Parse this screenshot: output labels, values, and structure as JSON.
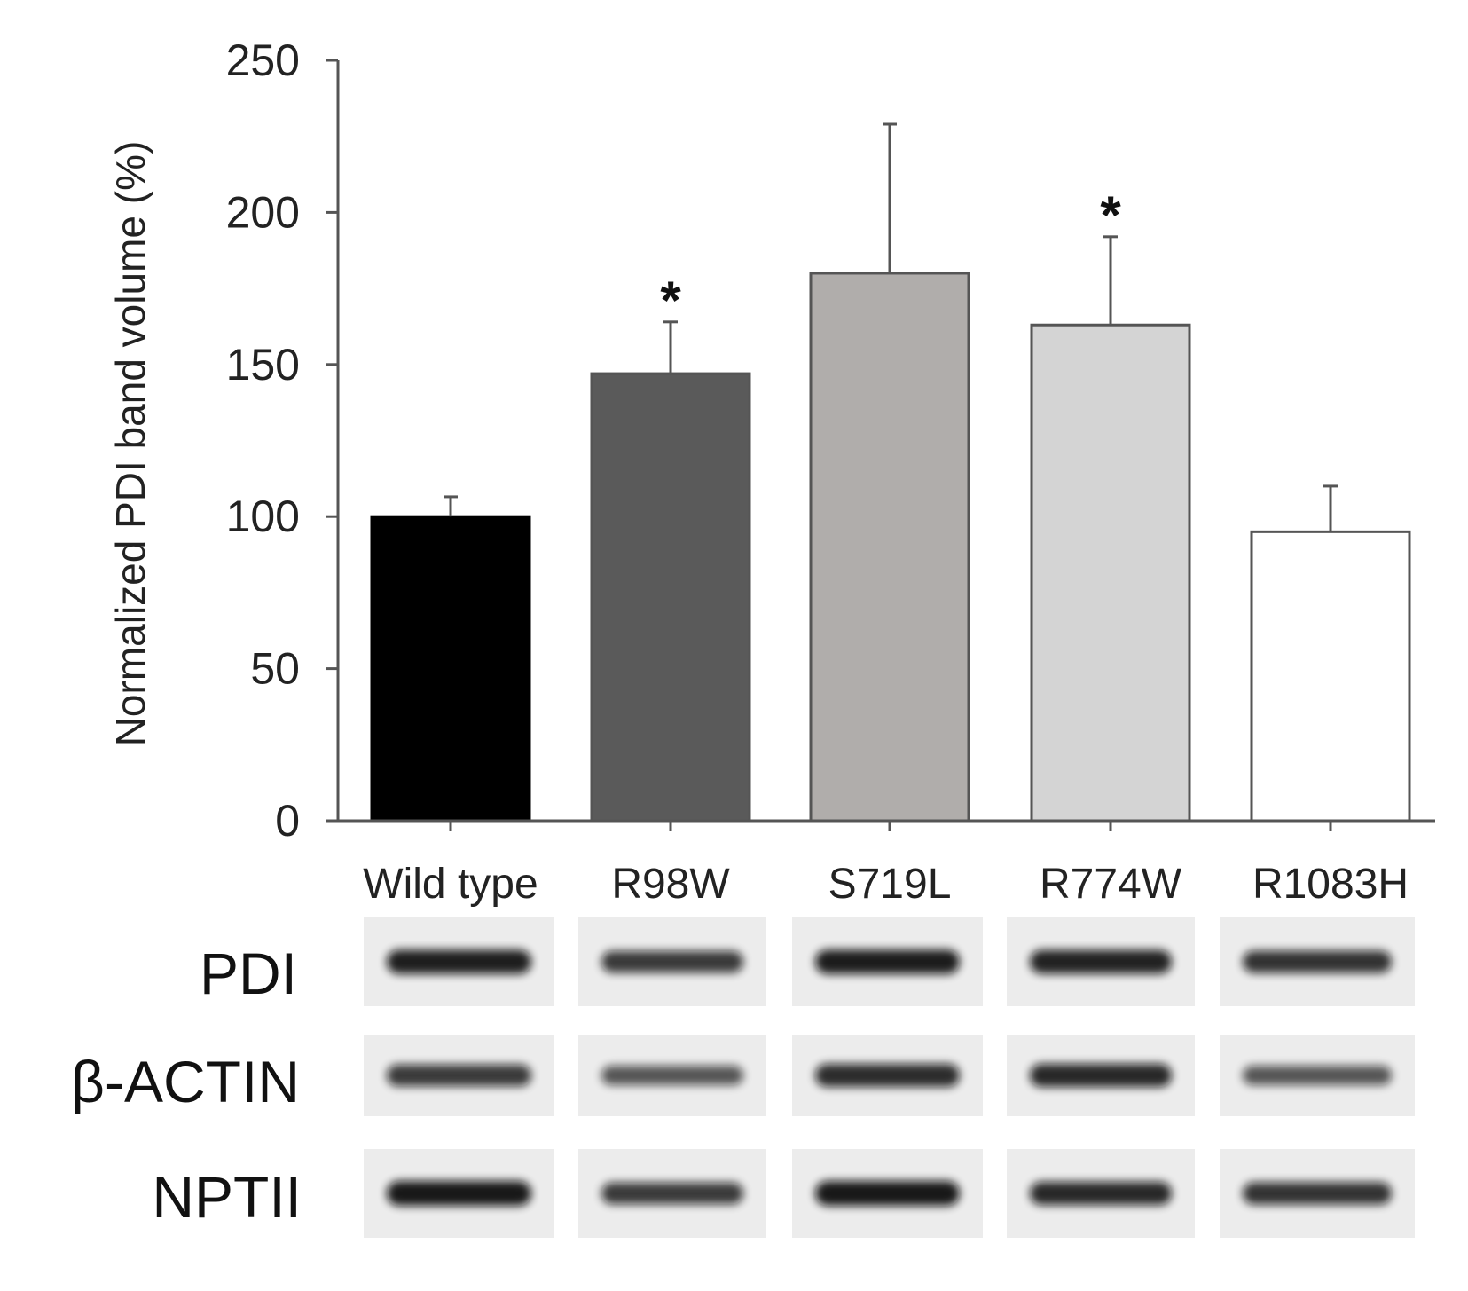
{
  "chart_data": {
    "type": "bar",
    "ylabel": "Normalized PDI band volume (%)",
    "ylim": [
      0,
      250
    ],
    "yticks": [
      0,
      50,
      100,
      150,
      200,
      250
    ],
    "categories": [
      "Wild type",
      "R98W",
      "S719L",
      "R774W",
      "R1083H"
    ],
    "values": [
      100,
      147,
      180,
      163,
      95
    ],
    "error_plus": [
      6.5,
      17,
      49,
      29,
      15
    ],
    "significance": [
      "",
      "*",
      "",
      "*",
      ""
    ],
    "bar_colors": [
      "#000000",
      "#5a5a5a",
      "#b0adab",
      "#d4d4d4",
      "#ffffff"
    ],
    "grid": false
  },
  "blot": {
    "rows": [
      {
        "label": "PDI",
        "intensity": [
          0.95,
          0.75,
          0.97,
          0.92,
          0.8
        ]
      },
      {
        "label": "β-ACTIN",
        "intensity": [
          0.75,
          0.55,
          0.85,
          0.88,
          0.55
        ]
      },
      {
        "label": "NPTII",
        "intensity": [
          1.0,
          0.75,
          1.0,
          0.88,
          0.8
        ]
      }
    ]
  }
}
